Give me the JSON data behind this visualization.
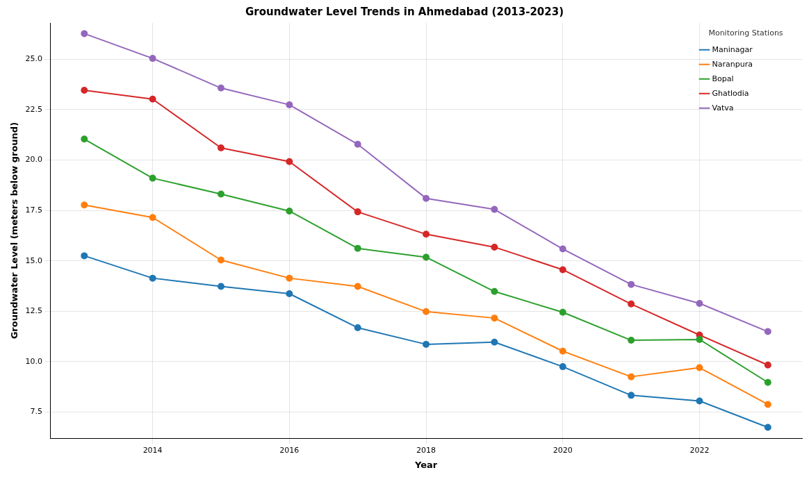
{
  "chart_data": {
    "type": "line",
    "title": "Groundwater Level Trends in Ahmedabad (2013-2023)",
    "xlabel": "Year",
    "ylabel": "Groundwater Level (meters below ground)",
    "legend_title": "Monitoring Stations",
    "x": [
      2013,
      2014,
      2015,
      2016,
      2017,
      2018,
      2019,
      2020,
      2021,
      2022,
      2023
    ],
    "series": [
      {
        "name": "Maninagar",
        "color": "#1f77b4",
        "values": [
          15.25,
          14.14,
          13.73,
          13.37,
          11.68,
          10.86,
          10.97,
          9.75,
          8.33,
          8.05,
          6.74
        ]
      },
      {
        "name": "Naranpura",
        "color": "#ff7f0e",
        "values": [
          17.77,
          17.15,
          15.04,
          14.14,
          13.73,
          12.48,
          12.16,
          10.52,
          9.25,
          9.7,
          7.88
        ]
      },
      {
        "name": "Bopal",
        "color": "#2ca02c",
        "values": [
          21.04,
          19.1,
          18.31,
          17.47,
          15.62,
          15.18,
          13.48,
          12.45,
          11.06,
          11.1,
          8.97
        ]
      },
      {
        "name": "Ghatlodia",
        "color": "#d62728",
        "values": [
          23.46,
          23.02,
          20.6,
          19.92,
          17.43,
          16.32,
          15.68,
          14.56,
          12.86,
          11.32,
          9.83
        ]
      },
      {
        "name": "Vatva",
        "color": "#9467bd",
        "values": [
          26.27,
          25.04,
          23.57,
          22.74,
          20.78,
          18.1,
          17.55,
          15.59,
          13.83,
          12.89,
          11.49
        ]
      }
    ],
    "xlim": [
      2012.5,
      2023.5
    ],
    "xticks": [
      2014,
      2016,
      2018,
      2020,
      2022
    ],
    "ylim": [
      6.2,
      26.8
    ],
    "yticks": [
      7.5,
      {
        "value": 10,
        "label": "10.0"
      },
      12.5,
      {
        "value": 15,
        "label": "15.0"
      },
      17.5,
      {
        "value": 20,
        "label": "20.0"
      },
      22.5,
      {
        "value": 25,
        "label": "25.0"
      }
    ],
    "grid": true,
    "legend": "top right",
    "marker": "circle",
    "line_style": "solid"
  }
}
